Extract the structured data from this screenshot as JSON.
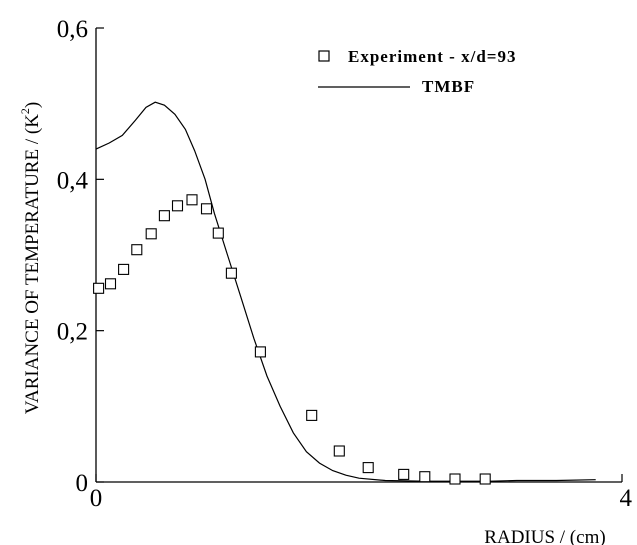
{
  "chart_data": {
    "type": "scatter",
    "xlabel": "RADIUS / (cm)",
    "ylabel_text": "VARIANCE OF TEMPERATURE / (K",
    "ylabel_sup": "2",
    "ylabel_close": ")",
    "xlim": [
      0,
      4
    ],
    "ylim": [
      0,
      0.6
    ],
    "x_ticks": [
      {
        "value": 0,
        "label": "0"
      },
      {
        "value": 4,
        "label": "4"
      }
    ],
    "y_ticks": [
      {
        "value": 0,
        "label": "0"
      },
      {
        "value": 0.2,
        "label": "0,2"
      },
      {
        "value": 0.4,
        "label": "0,4"
      },
      {
        "value": 0.6,
        "label": "0,6"
      }
    ],
    "grid": false,
    "legend_position": "top-right",
    "series": [
      {
        "name": "Experiment - x/d=93",
        "marker": "open-square",
        "x": [
          0.02,
          0.11,
          0.21,
          0.31,
          0.42,
          0.52,
          0.62,
          0.73,
          0.84,
          0.93,
          1.03,
          1.25,
          1.64,
          1.85,
          2.07,
          2.34,
          2.5,
          2.73,
          2.96
        ],
        "y": [
          0.256,
          0.262,
          0.281,
          0.307,
          0.328,
          0.352,
          0.365,
          0.373,
          0.361,
          0.329,
          0.276,
          0.172,
          0.088,
          0.041,
          0.019,
          0.01,
          0.007,
          0.004,
          0.004
        ]
      },
      {
        "name": "TMBF",
        "style": "solid-line",
        "x": [
          0,
          0.1,
          0.2,
          0.3,
          0.38,
          0.45,
          0.52,
          0.6,
          0.68,
          0.75,
          0.83,
          0.9,
          1.0,
          1.1,
          1.2,
          1.3,
          1.4,
          1.5,
          1.6,
          1.7,
          1.8,
          1.9,
          2.0,
          2.2,
          2.5,
          2.8,
          3.0,
          3.2,
          3.5,
          3.8
        ],
        "y": [
          0.44,
          0.448,
          0.458,
          0.478,
          0.495,
          0.502,
          0.498,
          0.486,
          0.466,
          0.438,
          0.4,
          0.355,
          0.3,
          0.245,
          0.19,
          0.14,
          0.1,
          0.065,
          0.04,
          0.025,
          0.015,
          0.009,
          0.005,
          0.002,
          0.001,
          0.001,
          0.001,
          0.002,
          0.002,
          0.003
        ]
      }
    ]
  }
}
